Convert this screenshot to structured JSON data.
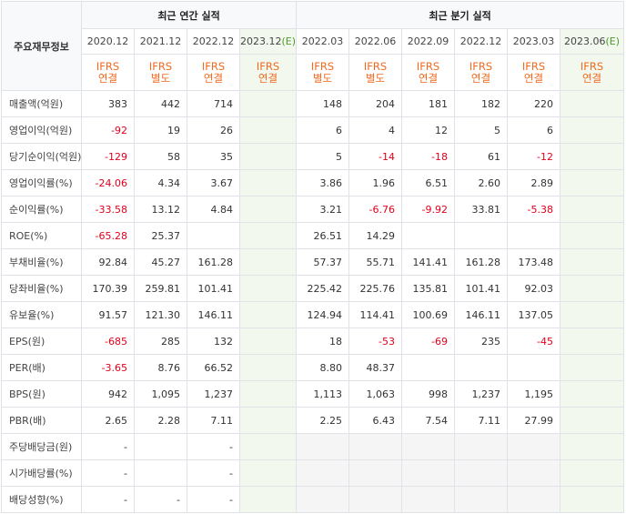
{
  "header": {
    "main_label": "주요재무정보",
    "annual_title": "최근 연간 실적",
    "quarter_title": "최근 분기 실적"
  },
  "columns": [
    {
      "date": "2020.12",
      "ifrs1": "IFRS",
      "ifrs2": "연결",
      "estimate": false
    },
    {
      "date": "2021.12",
      "ifrs1": "IFRS",
      "ifrs2": "별도",
      "estimate": false
    },
    {
      "date": "2022.12",
      "ifrs1": "IFRS",
      "ifrs2": "연결",
      "estimate": false
    },
    {
      "date": "2023.12",
      "est_mark": "(E)",
      "ifrs1": "IFRS",
      "ifrs2": "연결",
      "estimate": true
    },
    {
      "date": "2022.03",
      "ifrs1": "IFRS",
      "ifrs2": "별도",
      "estimate": false
    },
    {
      "date": "2022.06",
      "ifrs1": "IFRS",
      "ifrs2": "별도",
      "estimate": false
    },
    {
      "date": "2022.09",
      "ifrs1": "IFRS",
      "ifrs2": "연결",
      "estimate": false
    },
    {
      "date": "2022.12",
      "ifrs1": "IFRS",
      "ifrs2": "연결",
      "estimate": false
    },
    {
      "date": "2023.03",
      "ifrs1": "IFRS",
      "ifrs2": "연결",
      "estimate": false
    },
    {
      "date": "2023.06",
      "est_mark": "(E)",
      "ifrs1": "IFRS",
      "ifrs2": "연결",
      "estimate": true
    }
  ],
  "rows": [
    {
      "label": "매출액(억원)",
      "values": [
        "383",
        "442",
        "714",
        "",
        "148",
        "204",
        "181",
        "182",
        "220",
        ""
      ]
    },
    {
      "label": "영업이익(억원)",
      "values": [
        "-92",
        "19",
        "26",
        "",
        "6",
        "4",
        "12",
        "5",
        "6",
        ""
      ]
    },
    {
      "label": "당기순이익(억원)",
      "values": [
        "-129",
        "58",
        "35",
        "",
        "5",
        "-14",
        "-18",
        "61",
        "-12",
        ""
      ]
    },
    {
      "label": "영업이익률(%)",
      "values": [
        "-24.06",
        "4.34",
        "3.67",
        "",
        "3.86",
        "1.96",
        "6.51",
        "2.60",
        "2.89",
        ""
      ]
    },
    {
      "label": "순이익률(%)",
      "values": [
        "-33.58",
        "13.12",
        "4.84",
        "",
        "3.21",
        "-6.76",
        "-9.92",
        "33.81",
        "-5.38",
        ""
      ]
    },
    {
      "label": "ROE(%)",
      "values": [
        "-65.28",
        "25.37",
        "",
        "",
        "26.51",
        "14.29",
        "",
        "",
        "",
        ""
      ]
    },
    {
      "label": "부채비율(%)",
      "values": [
        "92.84",
        "45.27",
        "161.28",
        "",
        "57.37",
        "55.71",
        "141.41",
        "161.28",
        "173.48",
        ""
      ]
    },
    {
      "label": "당좌비율(%)",
      "values": [
        "170.39",
        "259.81",
        "101.41",
        "",
        "225.42",
        "225.76",
        "135.81",
        "101.41",
        "92.03",
        ""
      ]
    },
    {
      "label": "유보율(%)",
      "values": [
        "91.57",
        "121.30",
        "146.11",
        "",
        "124.94",
        "114.41",
        "100.69",
        "146.11",
        "137.05",
        ""
      ]
    },
    {
      "label": "EPS(원)",
      "values": [
        "-685",
        "285",
        "132",
        "",
        "18",
        "-53",
        "-69",
        "235",
        "-45",
        ""
      ]
    },
    {
      "label": "PER(배)",
      "values": [
        "-3.65",
        "8.76",
        "66.52",
        "",
        "8.80",
        "48.37",
        "",
        "",
        "",
        ""
      ]
    },
    {
      "label": "BPS(원)",
      "values": [
        "942",
        "1,095",
        "1,237",
        "",
        "1,113",
        "1,063",
        "998",
        "1,237",
        "1,195",
        ""
      ]
    },
    {
      "label": "PBR(배)",
      "values": [
        "2.65",
        "2.28",
        "7.11",
        "",
        "2.25",
        "6.43",
        "7.54",
        "7.11",
        "27.99",
        ""
      ]
    },
    {
      "label": "주당배당금(원)",
      "values": [
        "-",
        "",
        "-",
        "",
        "",
        "",
        "",
        "",
        "",
        ""
      ]
    },
    {
      "label": "시가배당률(%)",
      "values": [
        "-",
        "",
        "-",
        "",
        "",
        "",
        "",
        "",
        "",
        ""
      ]
    },
    {
      "label": "배당성향(%)",
      "values": [
        "-",
        "-",
        "-",
        "",
        "",
        "",
        "",
        "",
        "",
        ""
      ]
    }
  ],
  "colors": {
    "ifrs_text": "#f06a1f",
    "negative": "#e3001b",
    "estimate_bg": "#f2f8ee",
    "estimate_mark": "#4c9a2a"
  }
}
